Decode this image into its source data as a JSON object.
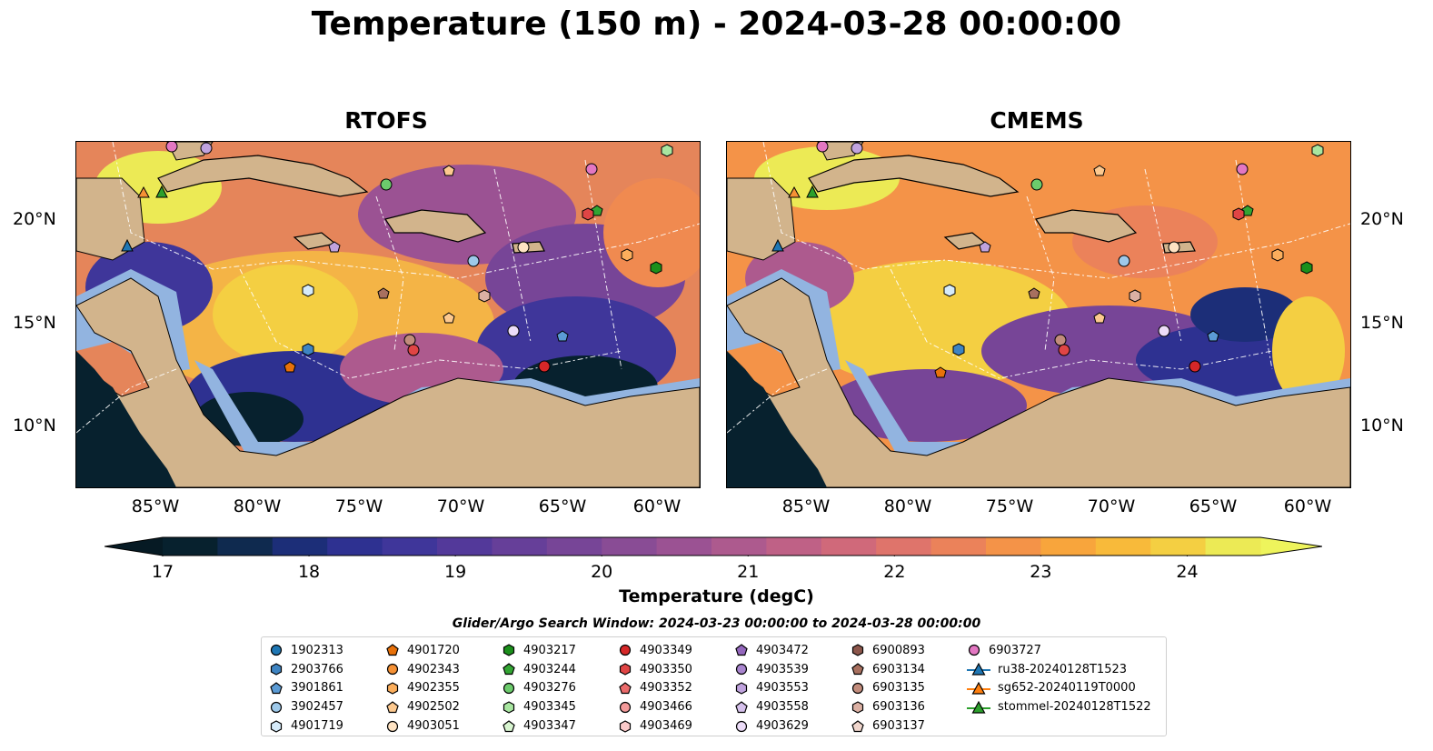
{
  "figure": {
    "title": "Temperature (150 m) - 2024-03-28 00:00:00",
    "panels": [
      {
        "title": "RTOFS"
      },
      {
        "title": "CMEMS"
      }
    ],
    "lat_labels": [
      "20°N",
      "15°N",
      "10°N"
    ],
    "lon_labels": [
      "85°W",
      "80°W",
      "75°W",
      "70°W",
      "65°W",
      "60°W"
    ],
    "colorbar": {
      "label": "Temperature (degC)",
      "ticks": [
        "17",
        "18",
        "19",
        "20",
        "21",
        "22",
        "23",
        "24"
      ],
      "min": 17,
      "max": 24.5,
      "step": 0.5,
      "colors": [
        "#07212e",
        "#0f2a4f",
        "#1c2e78",
        "#2e3191",
        "#3f369a",
        "#53399a",
        "#663f99",
        "#774597",
        "#894c95",
        "#9b5293",
        "#ad5a8e",
        "#bf6186",
        "#d0697a",
        "#df746b",
        "#eb825a",
        "#f49348",
        "#f8a53c",
        "#f8ba3a",
        "#f4cf42",
        "#ecea55"
      ],
      "extend": "both"
    },
    "search_window": "Glider/Argo Search Window: 2024-03-23 00:00:00 to 2024-03-28 00:00:00",
    "colors": {
      "land": "#d2b48c",
      "shallow": "#92b4e0",
      "deep_cold": "#07212e",
      "warm": "#ecea55"
    }
  },
  "legend": [
    {
      "label": "1902313",
      "marker": "circle",
      "color": "#1f77b4"
    },
    {
      "label": "2903766",
      "marker": "hexagon",
      "color": "#3e84c2"
    },
    {
      "label": "3901861",
      "marker": "pentagon",
      "color": "#5b9bd5"
    },
    {
      "label": "3902457",
      "marker": "circle",
      "color": "#9ec9ea"
    },
    {
      "label": "4901719",
      "marker": "hexagon",
      "color": "#d6ebfa"
    },
    {
      "label": "4901720",
      "marker": "pentagon",
      "color": "#e8710a"
    },
    {
      "label": "4902343",
      "marker": "circle",
      "color": "#f59135"
    },
    {
      "label": "4902355",
      "marker": "hexagon",
      "color": "#fbae5c"
    },
    {
      "label": "4902502",
      "marker": "pentagon",
      "color": "#fdc98f"
    },
    {
      "label": "4903051",
      "marker": "circle",
      "color": "#fee3c3"
    },
    {
      "label": "4903217",
      "marker": "hexagon",
      "color": "#1b8f1b"
    },
    {
      "label": "4903244",
      "marker": "pentagon",
      "color": "#33a533"
    },
    {
      "label": "4903276",
      "marker": "circle",
      "color": "#6ccb6c"
    },
    {
      "label": "4903345",
      "marker": "hexagon",
      "color": "#a8e6a0"
    },
    {
      "label": "4903347",
      "marker": "pentagon",
      "color": "#d8f5d0"
    },
    {
      "label": "4903349",
      "marker": "circle",
      "color": "#d62728"
    },
    {
      "label": "4903350",
      "marker": "hexagon",
      "color": "#e04545"
    },
    {
      "label": "4903352",
      "marker": "pentagon",
      "color": "#eb6b6b"
    },
    {
      "label": "4903466",
      "marker": "circle",
      "color": "#f39a9a"
    },
    {
      "label": "4903469",
      "marker": "hexagon",
      "color": "#fbcaca"
    },
    {
      "label": "4903472",
      "marker": "pentagon",
      "color": "#9467bd"
    },
    {
      "label": "4903539",
      "marker": "circle",
      "color": "#a985cf"
    },
    {
      "label": "4903553",
      "marker": "hexagon",
      "color": "#c0a3de"
    },
    {
      "label": "4903558",
      "marker": "pentagon",
      "color": "#d6c1ec"
    },
    {
      "label": "4903629",
      "marker": "circle",
      "color": "#ecdcf8"
    },
    {
      "label": "6900893",
      "marker": "hexagon",
      "color": "#8c564b"
    },
    {
      "label": "6903134",
      "marker": "pentagon",
      "color": "#a8705f"
    },
    {
      "label": "6903135",
      "marker": "circle",
      "color": "#c28c7c"
    },
    {
      "label": "6903136",
      "marker": "hexagon",
      "color": "#dbb0a3"
    },
    {
      "label": "6903137",
      "marker": "pentagon",
      "color": "#f0d6cd"
    },
    {
      "label": "6903727",
      "marker": "circle",
      "color": "#e377c2"
    },
    {
      "label": "ru38-20240128T1523",
      "marker": "triangle-line",
      "color": "#1f77b4"
    },
    {
      "label": "sg652-20240119T0000",
      "marker": "triangle-line",
      "color": "#ff7f0e"
    },
    {
      "label": "stommel-20240128T1522",
      "marker": "triangle-line",
      "color": "#2ca02c"
    }
  ]
}
